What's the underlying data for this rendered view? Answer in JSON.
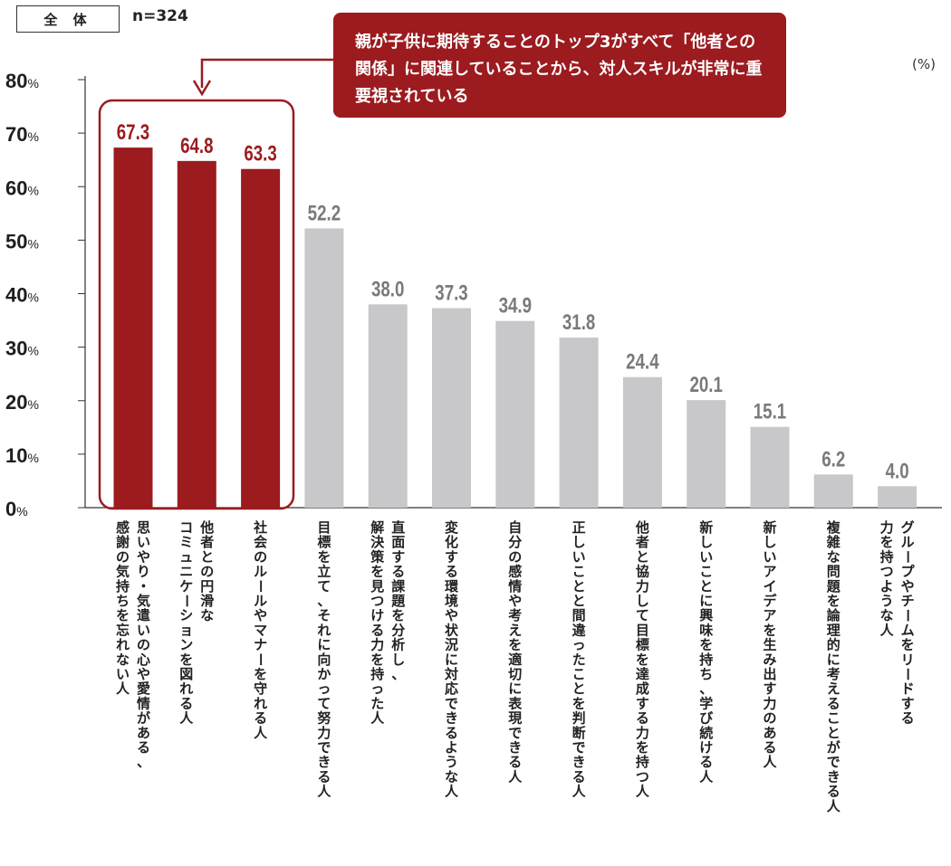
{
  "header": {
    "tag": "全 体",
    "sample": "n=324",
    "unit": "(%)"
  },
  "callout": {
    "text": "親が子供に期待することのトップ3がすべて「他者との関係」に関連していることから、対人スキルが非常に重要視されている"
  },
  "colors": {
    "highlight": "#9b1b1f",
    "normal_bar": "#c8c8ca",
    "normal_label": "#7a7a7a"
  },
  "chart_data": {
    "type": "bar",
    "ylim": [
      0,
      80
    ],
    "yticks": [
      0,
      10,
      20,
      30,
      40,
      50,
      60,
      70,
      80
    ],
    "ytick_suffix": "%",
    "categories": [
      "思いやり・気遣いの心や愛情がある、感謝の気持ちを忘れない人",
      "他者との円滑なコミュニケーションを図れる人",
      "社会のルールやマナーを守れる人",
      "目標を立て、それに向かって努力できる人",
      "直面する課題を分析し、解決策を見つける力を持った人",
      "変化する環境や状況に対応できるような人",
      "自分の感情や考えを適切に表現できる人",
      "正しいことと間違ったことを判断できる人",
      "他者と協力して目標を達成する力を持つ人",
      "新しいことに興味を持ち、学び続ける人",
      "新しいアイデアを生み出す力のある人",
      "複雑な問題を論理的に考えることができる人",
      "グループやチームをリードする力を持つような人"
    ],
    "values": [
      67.3,
      64.8,
      63.3,
      52.2,
      38.0,
      37.3,
      34.9,
      31.8,
      24.4,
      20.1,
      15.1,
      6.2,
      4.0
    ],
    "value_labels": [
      "67.3",
      "64.8",
      "63.3",
      "52.2",
      "38.0",
      "37.3",
      "34.9",
      "31.8",
      "24.4",
      "20.1",
      "15.1",
      "6.2",
      "4.0"
    ],
    "highlighted_count": 3,
    "label_columns": [
      [
        "思いやり・気遣いの心や愛情がある、",
        "感謝の気持ちを忘れない人"
      ],
      [
        "他者との円滑な",
        "コミュニケーションを図れる人"
      ],
      [
        "社会のルールやマナーを守れる人"
      ],
      [
        "目標を立て、それに向かって努力できる人"
      ],
      [
        "直面する課題を分析し、",
        "解決策を見つける力を持った人"
      ],
      [
        "変化する環境や状況に対応できるような人"
      ],
      [
        "自分の感情や考えを適切に表現できる人"
      ],
      [
        "正しいことと間違ったことを判断できる人"
      ],
      [
        "他者と協力して目標を達成する力を持つ人"
      ],
      [
        "新しいことに興味を持ち、学び続ける人"
      ],
      [
        "新しいアイデアを生み出す力のある人"
      ],
      [
        "複雑な問題を論理的に考えることができる人"
      ],
      [
        "グループやチームをリードする",
        "力を持つような人"
      ]
    ]
  }
}
